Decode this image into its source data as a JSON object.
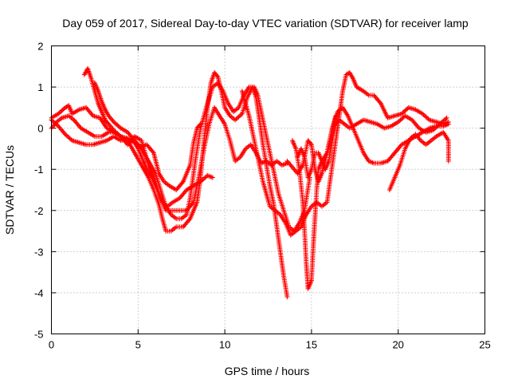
{
  "chart_data": {
    "type": "scatter",
    "title": "Day 059 of 2017, Sidereal Day-to-day VTEC variation (SDTVAR) for receiver lamp",
    "xlabel": "GPS time / hours",
    "ylabel": "SDTVAR / TECUs",
    "xlim": [
      0,
      25
    ],
    "ylim": [
      -5,
      2
    ],
    "xticks": [
      0,
      5,
      10,
      15,
      20,
      25
    ],
    "yticks": [
      -5,
      -4,
      -3,
      -2,
      -1,
      0,
      1,
      2
    ],
    "grid": true,
    "marker": "plus",
    "color": "#ff0000",
    "series": [
      {
        "name": "",
        "points": [
          [
            0,
            0.25
          ],
          [
            0.4,
            0.35
          ],
          [
            0.8,
            0.5
          ],
          [
            1.0,
            0.55
          ],
          [
            1.2,
            0.35
          ],
          [
            1.6,
            0.45
          ],
          [
            2.0,
            0.5
          ],
          [
            2.4,
            0.3
          ],
          [
            2.8,
            0.25
          ],
          [
            3.2,
            0.0
          ],
          [
            3.6,
            -0.1
          ],
          [
            4.0,
            -0.2
          ],
          [
            4.4,
            -0.25
          ],
          [
            4.8,
            -0.35
          ],
          [
            5.2,
            -0.45
          ],
          [
            5.5,
            -0.4
          ],
          [
            5.9,
            -0.6
          ],
          [
            6.2,
            -1.1
          ],
          [
            6.5,
            -1.3
          ],
          [
            6.8,
            -1.4
          ],
          [
            7.2,
            -1.5
          ],
          [
            7.6,
            -1.3
          ],
          [
            8.0,
            -0.9
          ],
          [
            8.2,
            -0.35
          ],
          [
            8.4,
            0.0
          ],
          [
            8.6,
            0.1
          ]
        ]
      },
      {
        "name": "",
        "points": [
          [
            0,
            0.2
          ],
          [
            0.4,
            0.05
          ],
          [
            0.8,
            -0.15
          ],
          [
            1.2,
            -0.3
          ],
          [
            1.6,
            -0.35
          ],
          [
            2.0,
            -0.4
          ],
          [
            2.4,
            -0.4
          ],
          [
            2.8,
            -0.35
          ],
          [
            3.2,
            -0.3
          ],
          [
            3.6,
            -0.2
          ],
          [
            4.0,
            -0.3
          ],
          [
            4.4,
            -0.25
          ],
          [
            4.8,
            -0.35
          ],
          [
            5.0,
            -0.5
          ],
          [
            5.3,
            -0.8
          ],
          [
            5.5,
            -1.0
          ],
          [
            5.8,
            -1.2
          ],
          [
            6.1,
            -1.5
          ],
          [
            6.4,
            -1.8
          ],
          [
            6.7,
            -1.9
          ],
          [
            7.0,
            -1.8
          ],
          [
            7.4,
            -1.7
          ],
          [
            7.8,
            -1.5
          ],
          [
            8.2,
            -1.4
          ],
          [
            8.6,
            -1.3
          ],
          [
            9.0,
            -1.15
          ],
          [
            9.3,
            -1.2
          ]
        ]
      },
      {
        "name": "",
        "points": [
          [
            1.9,
            1.3
          ],
          [
            2.1,
            1.45
          ],
          [
            2.3,
            1.2
          ],
          [
            2.5,
            0.9
          ],
          [
            2.7,
            0.6
          ],
          [
            2.9,
            0.4
          ],
          [
            3.1,
            0.2
          ],
          [
            3.3,
            0.1
          ],
          [
            3.6,
            -0.05
          ],
          [
            4.0,
            -0.2
          ],
          [
            4.4,
            -0.3
          ],
          [
            4.8,
            -0.6
          ],
          [
            5.2,
            -0.9
          ],
          [
            5.6,
            -1.2
          ],
          [
            5.9,
            -1.5
          ],
          [
            6.2,
            -1.85
          ],
          [
            6.4,
            -2.2
          ],
          [
            6.6,
            -2.5
          ],
          [
            6.9,
            -2.5
          ],
          [
            7.2,
            -2.4
          ],
          [
            7.6,
            -2.4
          ],
          [
            8.0,
            -2.2
          ],
          [
            8.4,
            -1.8
          ],
          [
            8.6,
            -1.2
          ],
          [
            8.8,
            -0.3
          ],
          [
            9.0,
            0.5
          ],
          [
            9.2,
            1.1
          ],
          [
            9.4,
            1.35
          ],
          [
            9.6,
            1.25
          ],
          [
            9.8,
            0.9
          ],
          [
            10.0,
            0.5
          ],
          [
            10.3,
            0.3
          ],
          [
            10.6,
            0.2
          ],
          [
            11.0,
            0.35
          ],
          [
            11.3,
            0.75
          ],
          [
            11.6,
            1.0
          ],
          [
            11.8,
            0.75
          ],
          [
            12.0,
            0.2
          ],
          [
            12.2,
            -0.4
          ],
          [
            12.4,
            -0.9
          ],
          [
            12.6,
            -1.4
          ],
          [
            12.8,
            -1.8
          ],
          [
            13.0,
            -2.4
          ],
          [
            13.2,
            -3.0
          ],
          [
            13.4,
            -3.6
          ],
          [
            13.6,
            -4.1
          ]
        ]
      },
      {
        "name": "",
        "points": [
          [
            2.5,
            1.1
          ],
          [
            2.7,
            0.9
          ],
          [
            2.9,
            0.65
          ],
          [
            3.1,
            0.45
          ],
          [
            3.3,
            0.3
          ],
          [
            3.6,
            0.15
          ],
          [
            4.0,
            0.0
          ],
          [
            4.4,
            -0.1
          ],
          [
            4.8,
            -0.3
          ],
          [
            5.2,
            -0.5
          ],
          [
            5.6,
            -0.8
          ],
          [
            6.0,
            -1.1
          ],
          [
            6.3,
            -1.5
          ],
          [
            6.6,
            -1.9
          ],
          [
            6.9,
            -2.1
          ],
          [
            7.2,
            -2.2
          ],
          [
            7.5,
            -2.2
          ],
          [
            7.8,
            -2.1
          ],
          [
            8.0,
            -1.7
          ],
          [
            8.3,
            -0.8
          ],
          [
            8.6,
            0.0
          ],
          [
            9.0,
            0.6
          ],
          [
            9.3,
            1.0
          ],
          [
            9.6,
            1.1
          ],
          [
            9.9,
            0.9
          ],
          [
            10.2,
            0.6
          ],
          [
            10.5,
            0.4
          ],
          [
            10.8,
            0.5
          ],
          [
            11.1,
            0.8
          ],
          [
            11.4,
            1.0
          ],
          [
            11.7,
            1.0
          ],
          [
            11.9,
            0.8
          ],
          [
            12.2,
            0.2
          ],
          [
            12.5,
            -0.4
          ],
          [
            12.8,
            -1.0
          ],
          [
            13.1,
            -1.6
          ],
          [
            13.4,
            -2.0
          ],
          [
            13.7,
            -2.4
          ],
          [
            14.0,
            -2.5
          ],
          [
            14.3,
            -2.3
          ],
          [
            14.6,
            -2.0
          ],
          [
            14.9,
            -1.2
          ]
        ]
      },
      {
        "name": "",
        "points": [
          [
            0,
            0.0
          ],
          [
            0.3,
            0.15
          ],
          [
            0.6,
            0.25
          ],
          [
            1.0,
            0.3
          ],
          [
            1.3,
            0.2
          ],
          [
            1.7,
            0.0
          ],
          [
            2.1,
            -0.1
          ],
          [
            2.5,
            -0.2
          ],
          [
            2.9,
            -0.2
          ],
          [
            3.3,
            -0.1
          ],
          [
            3.6,
            -0.1
          ],
          [
            4.0,
            -0.2
          ],
          [
            4.4,
            -0.4
          ],
          [
            4.8,
            -0.2
          ],
          [
            5.2,
            -0.3
          ],
          [
            5.6,
            -0.9
          ],
          [
            6.0,
            -1.3
          ],
          [
            6.3,
            -1.7
          ],
          [
            6.6,
            -2.0
          ],
          [
            7.0,
            -2.0
          ],
          [
            7.4,
            -2.0
          ],
          [
            7.8,
            -2.0
          ],
          [
            8.2,
            -1.8
          ],
          [
            8.5,
            -1.2
          ],
          [
            8.8,
            -0.5
          ],
          [
            9.1,
            0.1
          ],
          [
            9.4,
            0.5
          ],
          [
            9.7,
            0.3
          ],
          [
            10.0,
            0.1
          ],
          [
            10.3,
            -0.3
          ],
          [
            10.6,
            -0.8
          ],
          [
            10.9,
            -0.7
          ],
          [
            11.2,
            -0.5
          ],
          [
            11.5,
            -0.4
          ],
          [
            11.8,
            -0.6
          ],
          [
            12.1,
            -0.85
          ],
          [
            12.4,
            -0.8
          ],
          [
            12.7,
            -0.9
          ],
          [
            13.0,
            -0.8
          ],
          [
            13.3,
            -0.9
          ],
          [
            13.6,
            -0.85
          ]
        ]
      },
      {
        "name": "",
        "points": [
          [
            11.0,
            0.9
          ],
          [
            11.2,
            0.6
          ],
          [
            11.4,
            0.3
          ],
          [
            11.6,
            -0.1
          ],
          [
            11.8,
            -0.5
          ],
          [
            12.0,
            -0.9
          ],
          [
            12.2,
            -1.3
          ],
          [
            12.4,
            -1.6
          ],
          [
            12.6,
            -1.9
          ],
          [
            12.9,
            -2.0
          ],
          [
            13.2,
            -2.1
          ],
          [
            13.5,
            -2.3
          ],
          [
            13.8,
            -2.6
          ],
          [
            14.1,
            -2.5
          ],
          [
            14.4,
            -2.4
          ],
          [
            14.7,
            -2.1
          ],
          [
            15.0,
            -1.9
          ],
          [
            15.3,
            -1.8
          ],
          [
            15.6,
            -1.9
          ],
          [
            15.9,
            -1.8
          ],
          [
            16.2,
            -0.9
          ],
          [
            16.4,
            -0.3
          ],
          [
            16.6,
            0.3
          ],
          [
            16.8,
            0.9
          ],
          [
            17.0,
            1.3
          ],
          [
            17.2,
            1.35
          ],
          [
            17.4,
            1.2
          ],
          [
            17.6,
            1.0
          ],
          [
            17.8,
            0.95
          ],
          [
            18.0,
            0.9
          ],
          [
            18.3,
            0.8
          ],
          [
            18.6,
            0.8
          ],
          [
            19.0,
            0.6
          ],
          [
            19.4,
            0.25
          ],
          [
            19.8,
            0.3
          ],
          [
            20.2,
            0.35
          ],
          [
            20.6,
            0.5
          ],
          [
            21.0,
            0.45
          ],
          [
            21.4,
            0.35
          ],
          [
            21.8,
            0.2
          ],
          [
            22.2,
            0.15
          ],
          [
            22.6,
            0.1
          ],
          [
            22.9,
            0.15
          ]
        ]
      },
      {
        "name": "",
        "points": [
          [
            13.6,
            -0.8
          ],
          [
            13.9,
            -0.95
          ],
          [
            14.2,
            -1.1
          ],
          [
            14.5,
            -0.9
          ],
          [
            14.8,
            -0.3
          ],
          [
            15.0,
            -0.4
          ],
          [
            15.2,
            -1.0
          ],
          [
            15.4,
            -1.3
          ],
          [
            15.6,
            -1.1
          ],
          [
            15.9,
            -0.6
          ],
          [
            16.2,
            0.0
          ],
          [
            16.5,
            0.4
          ],
          [
            16.8,
            0.5
          ],
          [
            17.1,
            0.3
          ],
          [
            17.4,
            0.0
          ],
          [
            17.7,
            -0.3
          ],
          [
            18.0,
            -0.6
          ],
          [
            18.3,
            -0.8
          ],
          [
            18.6,
            -0.85
          ],
          [
            19.0,
            -0.85
          ],
          [
            19.4,
            -0.8
          ],
          [
            19.8,
            -0.6
          ],
          [
            20.2,
            -0.4
          ],
          [
            20.6,
            -0.3
          ],
          [
            21.0,
            -0.2
          ],
          [
            21.4,
            -0.1
          ],
          [
            21.8,
            0.0
          ],
          [
            22.2,
            0.05
          ],
          [
            22.6,
            0.05
          ],
          [
            22.9,
            0.1
          ]
        ]
      },
      {
        "name": "",
        "points": [
          [
            14.2,
            -0.7
          ],
          [
            14.4,
            -0.5
          ],
          [
            14.6,
            -0.7
          ],
          [
            14.8,
            -1.2
          ],
          [
            15.0,
            -1.0
          ],
          [
            15.2,
            -0.6
          ],
          [
            15.4,
            -0.6
          ],
          [
            15.6,
            -0.8
          ],
          [
            15.8,
            -1.0
          ],
          [
            16.0,
            -0.8
          ],
          [
            16.2,
            -0.3
          ],
          [
            16.4,
            0.1
          ],
          [
            16.6,
            0.2
          ],
          [
            16.9,
            0.1
          ],
          [
            17.2,
            0.0
          ],
          [
            17.6,
            0.1
          ],
          [
            18.0,
            0.2
          ],
          [
            18.4,
            0.15
          ],
          [
            18.8,
            0.1
          ],
          [
            19.2,
            0.0
          ],
          [
            19.6,
            0.05
          ],
          [
            20.0,
            0.15
          ],
          [
            20.4,
            0.3
          ],
          [
            20.8,
            0.2
          ],
          [
            21.2,
            0.0
          ],
          [
            21.6,
            -0.1
          ],
          [
            22.0,
            -0.05
          ],
          [
            22.4,
            0.1
          ],
          [
            22.8,
            0.25
          ]
        ]
      },
      {
        "name": "",
        "points": [
          [
            13.9,
            -0.3
          ],
          [
            14.1,
            -0.5
          ],
          [
            14.3,
            -1.0
          ],
          [
            14.5,
            -1.8
          ],
          [
            14.6,
            -2.5
          ],
          [
            14.7,
            -3.3
          ],
          [
            14.8,
            -3.9
          ],
          [
            15.0,
            -3.7
          ],
          [
            15.1,
            -2.9
          ],
          [
            15.2,
            -2.2
          ],
          [
            15.3,
            -1.5
          ],
          [
            15.4,
            -1.0
          ],
          [
            15.6,
            -0.8
          ],
          [
            15.9,
            -0.6
          ],
          [
            16.1,
            -0.2
          ],
          [
            16.4,
            0.3
          ]
        ]
      },
      {
        "name": "",
        "points": [
          [
            19.5,
            -1.5
          ],
          [
            19.8,
            -1.2
          ],
          [
            20.1,
            -0.9
          ],
          [
            20.4,
            -0.5
          ],
          [
            20.7,
            -0.25
          ],
          [
            21.0,
            -0.15
          ],
          [
            21.3,
            -0.3
          ],
          [
            21.6,
            -0.4
          ],
          [
            21.9,
            -0.3
          ],
          [
            22.2,
            -0.2
          ],
          [
            22.6,
            -0.1
          ],
          [
            22.9,
            -0.3
          ],
          [
            22.9,
            -0.8
          ]
        ]
      }
    ]
  }
}
